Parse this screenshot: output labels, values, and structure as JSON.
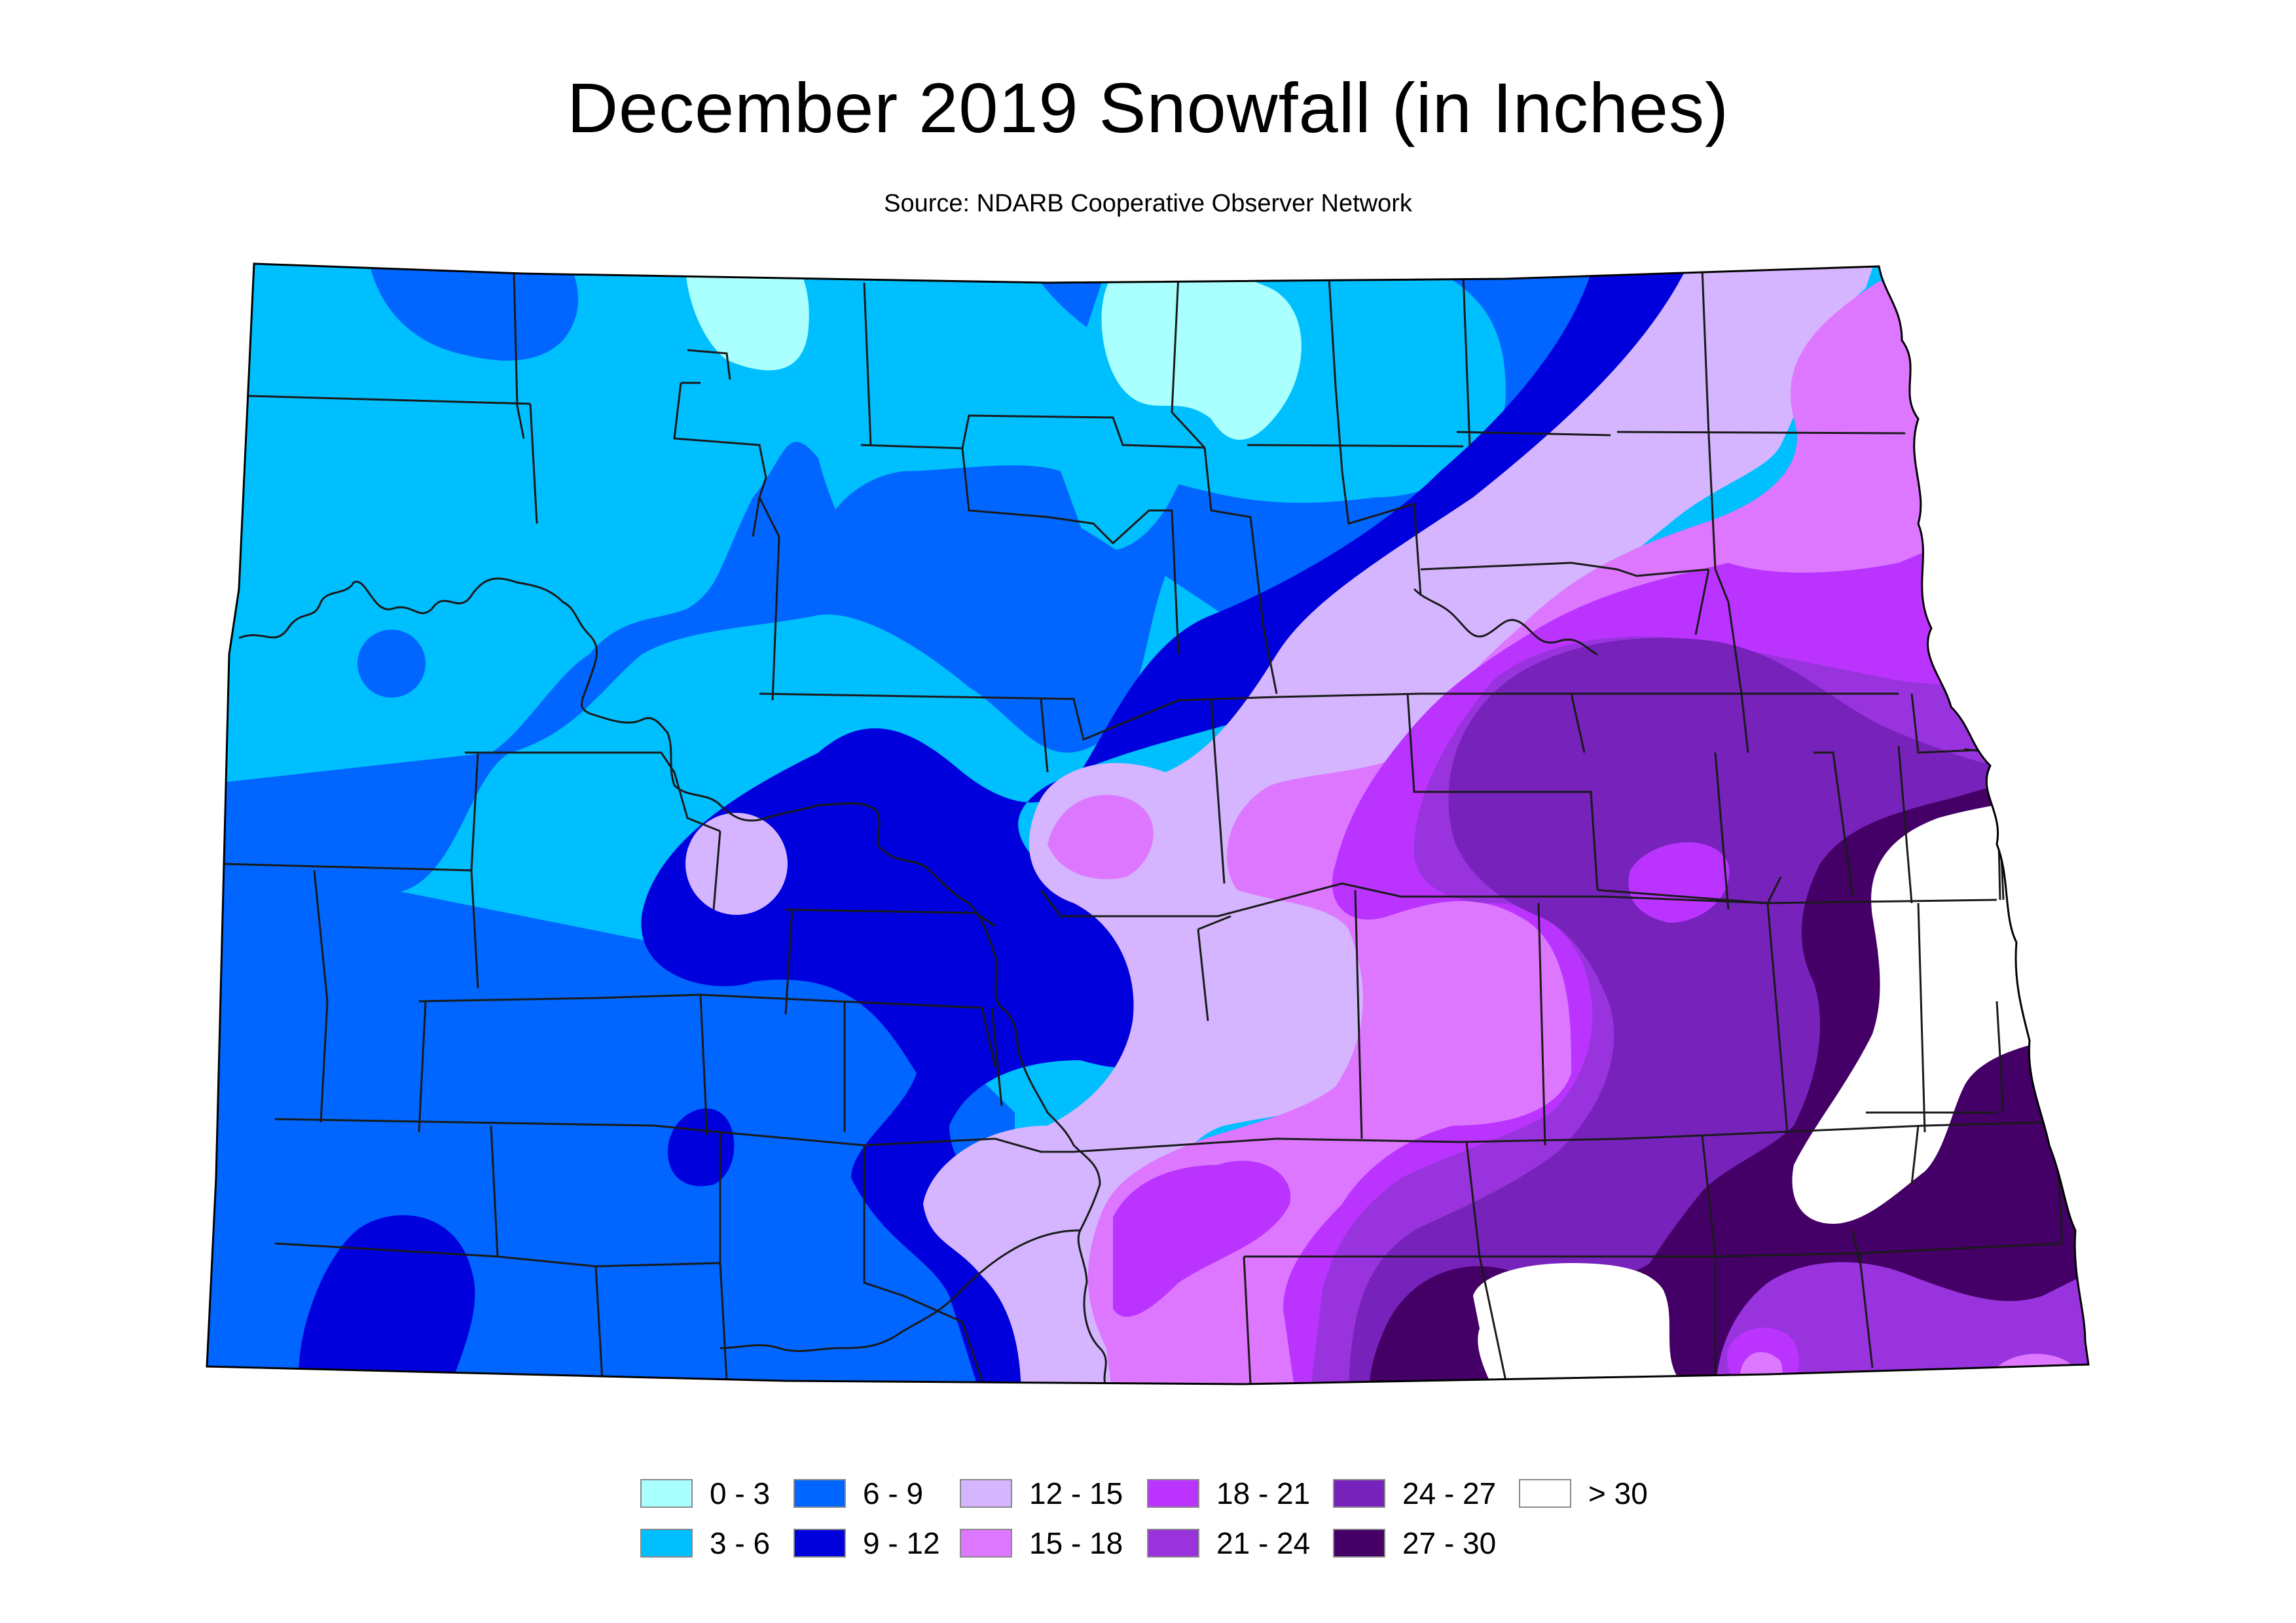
{
  "title": "December 2019 Snowfall (in Inches)",
  "subtitle": "Source: NDARB Cooperative Observer Network",
  "legend": {
    "items": [
      {
        "label": "0 - 3",
        "color": "#aaffff"
      },
      {
        "label": "3 - 6",
        "color": "#00bfff"
      },
      {
        "label": "6 - 9",
        "color": "#0066ff"
      },
      {
        "label": "9 - 12",
        "color": "#0000dd"
      },
      {
        "label": "12 - 15",
        "color": "#d5b5ff"
      },
      {
        "label": "15 - 18",
        "color": "#dd77ff"
      },
      {
        "label": "18 - 21",
        "color": "#bb33ff"
      },
      {
        "label": "21 - 24",
        "color": "#9933dd"
      },
      {
        "label": "24 - 27",
        "color": "#7722bb"
      },
      {
        "label": "27 - 30",
        "color": "#440066"
      },
      {
        "label": "> 30",
        "color": "#ffffff"
      }
    ]
  },
  "colors": {
    "county_lines": "#1a1a1a",
    "border": "#000000"
  }
}
